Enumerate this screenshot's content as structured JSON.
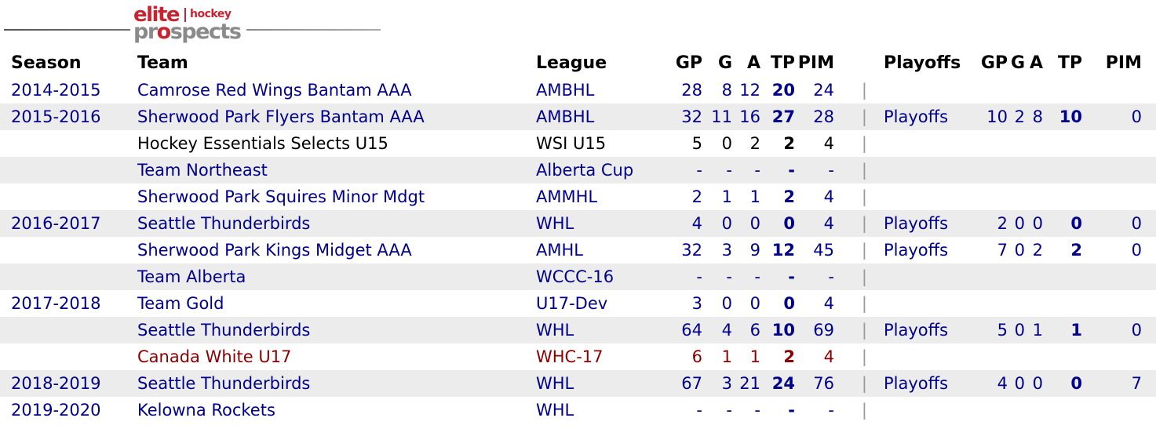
{
  "logo": {
    "elite": "elite",
    "hockey": "hockey",
    "prospects_pr": "pr",
    "prospects_o": "o",
    "prospects_rest": "spects"
  },
  "colors": {
    "navy": "#00008B",
    "black": "#000000",
    "darkred": "#8B0000",
    "row_alt": "#ECECEC",
    "separator": "#999999",
    "logo_red": "#C92332",
    "logo_gray": "#8A8A8A"
  },
  "table": {
    "separator": "|",
    "headers": {
      "season": "Season",
      "team": "Team",
      "league": "League",
      "gp": "GP",
      "g": "G",
      "a": "A",
      "tp": "TP",
      "pim": "PIM",
      "playoffs": "Playoffs",
      "pgp": "GP",
      "pg": "G",
      "pa": "A",
      "ptp": "TP",
      "ppim": "PIM"
    },
    "rows": [
      {
        "season": "2014-2015",
        "team": "Camrose Red Wings Bantam AAA",
        "league": "AMBHL",
        "gp": "28",
        "g": "8",
        "a": "12",
        "tp": "20",
        "pim": "24",
        "playoffs": "",
        "pgp": "",
        "pg": "",
        "pa": "",
        "ptp": "",
        "ppim": "",
        "text_color": "navy",
        "shaded": false
      },
      {
        "season": "2015-2016",
        "team": "Sherwood Park Flyers Bantam AAA",
        "league": "AMBHL",
        "gp": "32",
        "g": "11",
        "a": "16",
        "tp": "27",
        "pim": "28",
        "playoffs": "Playoffs",
        "pgp": "10",
        "pg": "2",
        "pa": "8",
        "ptp": "10",
        "ppim": "0",
        "text_color": "navy",
        "shaded": true
      },
      {
        "season": "",
        "team": "Hockey Essentials Selects U15",
        "league": "WSI U15",
        "gp": "5",
        "g": "0",
        "a": "2",
        "tp": "2",
        "pim": "4",
        "playoffs": "",
        "pgp": "",
        "pg": "",
        "pa": "",
        "ptp": "",
        "ppim": "",
        "text_color": "black",
        "shaded": false
      },
      {
        "season": "",
        "team": "Team Northeast",
        "league": "Alberta Cup",
        "gp": "-",
        "g": "-",
        "a": "-",
        "tp": "-",
        "pim": "-",
        "playoffs": "",
        "pgp": "",
        "pg": "",
        "pa": "",
        "ptp": "",
        "ppim": "",
        "text_color": "navy",
        "shaded": true
      },
      {
        "season": "",
        "team": "Sherwood Park Squires Minor Mdgt",
        "league": "AMMHL",
        "gp": "2",
        "g": "1",
        "a": "1",
        "tp": "2",
        "pim": "4",
        "playoffs": "",
        "pgp": "",
        "pg": "",
        "pa": "",
        "ptp": "",
        "ppim": "",
        "text_color": "navy",
        "shaded": false
      },
      {
        "season": "2016-2017",
        "team": "Seattle Thunderbirds",
        "league": "WHL",
        "gp": "4",
        "g": "0",
        "a": "0",
        "tp": "0",
        "pim": "4",
        "playoffs": "Playoffs",
        "pgp": "2",
        "pg": "0",
        "pa": "0",
        "ptp": "0",
        "ppim": "0",
        "text_color": "navy",
        "shaded": true
      },
      {
        "season": "",
        "team": "Sherwood Park Kings Midget AAA",
        "league": "AMHL",
        "gp": "32",
        "g": "3",
        "a": "9",
        "tp": "12",
        "pim": "45",
        "playoffs": "Playoffs",
        "pgp": "7",
        "pg": "0",
        "pa": "2",
        "ptp": "2",
        "ppim": "0",
        "text_color": "navy",
        "shaded": false
      },
      {
        "season": "",
        "team": "Team Alberta",
        "league": "WCCC-16",
        "gp": "-",
        "g": "-",
        "a": "-",
        "tp": "-",
        "pim": "-",
        "playoffs": "",
        "pgp": "",
        "pg": "",
        "pa": "",
        "ptp": "",
        "ppim": "",
        "text_color": "navy",
        "shaded": true
      },
      {
        "season": "2017-2018",
        "team": "Team Gold",
        "league": "U17-Dev",
        "gp": "3",
        "g": "0",
        "a": "0",
        "tp": "0",
        "pim": "4",
        "playoffs": "",
        "pgp": "",
        "pg": "",
        "pa": "",
        "ptp": "",
        "ppim": "",
        "text_color": "navy",
        "shaded": false
      },
      {
        "season": "",
        "team": "Seattle Thunderbirds",
        "league": "WHL",
        "gp": "64",
        "g": "4",
        "a": "6",
        "tp": "10",
        "pim": "69",
        "playoffs": "Playoffs",
        "pgp": "5",
        "pg": "0",
        "pa": "1",
        "ptp": "1",
        "ppim": "0",
        "text_color": "navy",
        "shaded": true
      },
      {
        "season": "",
        "team": "Canada White U17",
        "league": "WHC-17",
        "gp": "6",
        "g": "1",
        "a": "1",
        "tp": "2",
        "pim": "4",
        "playoffs": "",
        "pgp": "",
        "pg": "",
        "pa": "",
        "ptp": "",
        "ppim": "",
        "text_color": "darkred",
        "shaded": false
      },
      {
        "season": "2018-2019",
        "team": "Seattle Thunderbirds",
        "league": "WHL",
        "gp": "67",
        "g": "3",
        "a": "21",
        "tp": "24",
        "pim": "76",
        "playoffs": "Playoffs",
        "pgp": "4",
        "pg": "0",
        "pa": "0",
        "ptp": "0",
        "ppim": "7",
        "text_color": "navy",
        "shaded": true
      },
      {
        "season": "2019-2020",
        "team": "Kelowna Rockets",
        "league": "WHL",
        "gp": "-",
        "g": "-",
        "a": "-",
        "tp": "-",
        "pim": "-",
        "playoffs": "",
        "pgp": "",
        "pg": "",
        "pa": "",
        "ptp": "",
        "ppim": "",
        "text_color": "navy",
        "shaded": false
      }
    ]
  }
}
